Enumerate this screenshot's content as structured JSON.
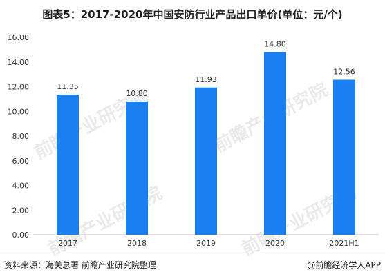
{
  "header": {
    "title": "图表5：2017-2020年中国安防行业产品出口单价(单位：元/个)"
  },
  "chart_data": {
    "type": "bar",
    "categories": [
      "2017",
      "2018",
      "2019",
      "2020",
      "2021H1"
    ],
    "values": [
      11.35,
      10.8,
      11.93,
      14.8,
      12.56
    ],
    "value_labels": [
      "11.35",
      "10.80",
      "11.93",
      "14.80",
      "12.56"
    ],
    "y_ticks": [
      "0.00",
      "2.00",
      "4.00",
      "6.00",
      "8.00",
      "10.00",
      "12.00",
      "14.00",
      "16.00"
    ],
    "ylim": [
      0,
      16
    ],
    "grid": false,
    "bar_color": "#1a7ff0",
    "title": "图表5：2017-2020年中国安防行业产品出口单价(单位：元/个)",
    "xlabel": "",
    "ylabel": ""
  },
  "footer": {
    "source": "资料来源：海关总署 前瞻产业研究院整理",
    "brand": "@前瞻经济学人APP"
  },
  "watermark": {
    "text": "前瞻产业研究院"
  }
}
